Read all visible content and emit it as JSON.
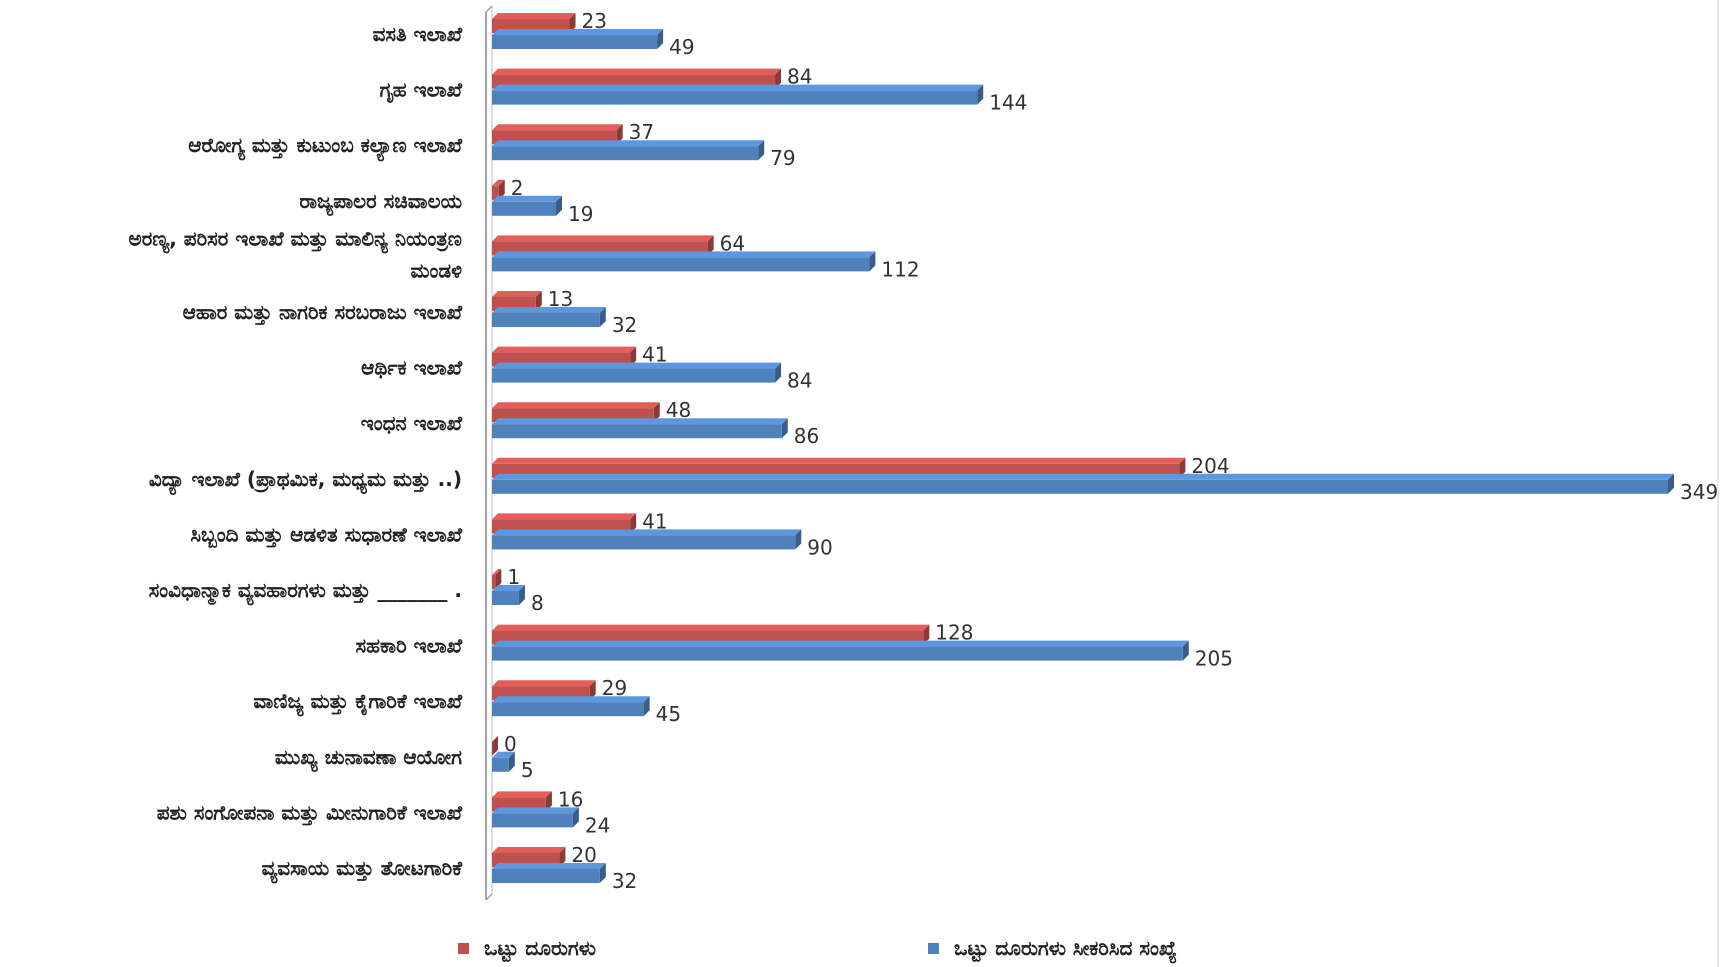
{
  "chart_data": {
    "type": "bar",
    "orientation": "horizontal",
    "style": "3d",
    "categories": [
      "ವಸತಿ ಇಲಾಖೆ",
      "ಗೃಹ ಇಲಾಖೆ",
      "ಆರೋಗ್ಯ ಮತ್ತು ಕುಟುಂಬ ಕಲ್ಯಾಣ ಇಲಾಖೆ",
      "ರಾಜ್ಯಪಾಲರ ಸಚಿವಾಲಯ",
      "ಅರಣ್ಯ, ಪರಿಸರ ಇಲಾಖೆ ಮತ್ತು ಮಾಲಿನ್ಯ ನಿಯಂತ್ರಣ|ಮಂಡಳಿ",
      "ಆಹಾರ ಮತ್ತು ನಾಗರಿಕ ಸರಬರಾಜು ಇಲಾಖೆ",
      "ಆರ್ಥಿಕ ಇಲಾಖೆ",
      "ಇಂಧನ ಇಲಾಖೆ",
      "ವಿದ್ಯಾ ಇಲಾಖೆ (ಪ್ರಾಥಮಿಕ, ಮಧ್ಯಮ ಮತ್ತು        ..)",
      "ಸಿಬ್ಬಂದಿ ಮತ್ತು ಆಡಳಿತ ಸುಧಾರಣೆ ಇಲಾಖೆ",
      "ಸಂವಿಧಾನ್ಮಾಕ ವ್ಯವಹಾರಗಳು ಮತ್ತು _______ .",
      "ಸಹಕಾರಿ ಇಲಾಖೆ",
      "ವಾಣಿಜ್ಯ ಮತ್ತು ಕೈಗಾರಿಕೆ ಇಲಾಖೆ",
      "ಮುಖ್ಯ ಚುನಾವಣಾ ಆಯೋಗ",
      "ಪಶು ಸಂಗೋಪನಾ ಮತ್ತು ಮೀನುಗಾರಿಕೆ ಇಲಾಖೆ",
      "ವ್ಯವಸಾಯ ಮತ್ತು ತೋಟಗಾರಿಕೆ"
    ],
    "series": [
      {
        "name": "ಒಟ್ಟು ದೂರುಗಳು",
        "color": "#c0504d",
        "values": [
          23,
          84,
          37,
          2,
          64,
          13,
          41,
          48,
          204,
          41,
          1,
          128,
          29,
          0,
          16,
          20
        ]
      },
      {
        "name": "ಒಟ್ಟು ದೂರುಗಳು ಸೀಕರಿಸಿದ ಸಂಖ್ಯೆ",
        "color": "#4f81bd",
        "values": [
          49,
          144,
          79,
          19,
          112,
          32,
          84,
          86,
          349,
          90,
          8,
          205,
          45,
          5,
          24,
          32
        ]
      }
    ],
    "title": "",
    "xlabel": "",
    "ylabel": "",
    "xlim": [
      0,
      349
    ],
    "grid": false,
    "legend": "bottom"
  }
}
